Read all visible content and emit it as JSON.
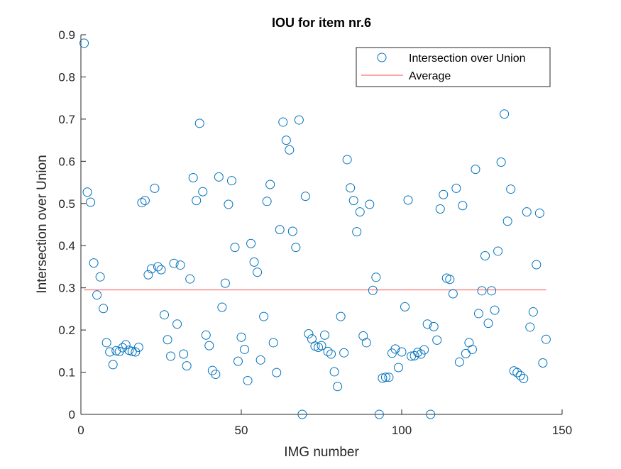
{
  "chart_data": {
    "type": "scatter",
    "title": "IOU for item nr.6",
    "xlabel": "IMG number",
    "ylabel": "Intersection over Union",
    "xlim": [
      0,
      150
    ],
    "ylim": [
      0,
      0.9
    ],
    "xticks": [
      0,
      50,
      100,
      150
    ],
    "xtick_labels": [
      "0",
      "50",
      "100",
      "150"
    ],
    "yticks": [
      0,
      0.1,
      0.2,
      0.3,
      0.4,
      0.5,
      0.6,
      0.7,
      0.8,
      0.9
    ],
    "ytick_labels": [
      "0",
      "0.1",
      "0.2",
      "0.3",
      "0.4",
      "0.5",
      "0.6",
      "0.7",
      "0.8",
      "0.9"
    ],
    "grid": false,
    "legend_position": "top-right",
    "marker_color": "#0072BD",
    "average_color": "#FF4D4D",
    "series": [
      {
        "name": "Intersection over Union",
        "x": [
          1,
          2,
          3,
          4,
          5,
          6,
          7,
          8,
          9,
          10,
          11,
          12,
          13,
          14,
          15,
          16,
          17,
          18,
          19,
          20,
          21,
          22,
          23,
          24,
          25,
          26,
          27,
          28,
          29,
          30,
          31,
          32,
          33,
          34,
          35,
          36,
          37,
          38,
          39,
          40,
          41,
          42,
          43,
          44,
          45,
          46,
          47,
          48,
          49,
          50,
          51,
          52,
          53,
          54,
          55,
          56,
          57,
          58,
          59,
          60,
          61,
          62,
          63,
          64,
          65,
          66,
          67,
          68,
          69,
          70,
          71,
          72,
          73,
          74,
          75,
          76,
          77,
          78,
          79,
          80,
          81,
          82,
          83,
          84,
          85,
          86,
          87,
          88,
          89,
          90,
          91,
          92,
          93,
          94,
          95,
          96,
          97,
          98,
          99,
          100,
          101,
          102,
          103,
          104,
          105,
          106,
          107,
          108,
          109,
          110,
          111,
          112,
          113,
          114,
          115,
          116,
          117,
          118,
          119,
          120,
          121,
          122,
          123,
          124,
          125,
          126,
          127,
          128,
          129,
          130,
          131,
          132,
          133,
          134,
          135,
          136,
          137,
          138,
          139,
          140,
          141,
          142,
          143,
          144,
          145
        ],
        "y": [
          0.88,
          0.527,
          0.503,
          0.359,
          0.283,
          0.326,
          0.251,
          0.17,
          0.148,
          0.118,
          0.151,
          0.149,
          0.158,
          0.165,
          0.152,
          0.149,
          0.148,
          0.159,
          0.502,
          0.507,
          0.331,
          0.345,
          0.536,
          0.35,
          0.343,
          0.236,
          0.177,
          0.138,
          0.358,
          0.214,
          0.354,
          0.143,
          0.115,
          0.321,
          0.561,
          0.507,
          0.69,
          0.528,
          0.188,
          0.163,
          0.104,
          0.095,
          0.563,
          0.254,
          0.311,
          0.498,
          0.554,
          0.396,
          0.126,
          0.183,
          0.154,
          0.08,
          0.405,
          0.361,
          0.337,
          0.129,
          0.232,
          0.505,
          0.545,
          0.17,
          0.099,
          0.438,
          0.693,
          0.65,
          0.627,
          0.434,
          0.396,
          0.698,
          0.0,
          0.517,
          0.191,
          0.179,
          0.162,
          0.159,
          0.163,
          0.188,
          0.149,
          0.143,
          0.101,
          0.066,
          0.232,
          0.146,
          0.604,
          0.537,
          0.507,
          0.433,
          0.48,
          0.186,
          0.17,
          0.498,
          0.294,
          0.325,
          0.0,
          0.086,
          0.088,
          0.088,
          0.145,
          0.155,
          0.111,
          0.148,
          0.255,
          0.508,
          0.138,
          0.139,
          0.147,
          0.143,
          0.153,
          0.214,
          0.0,
          0.208,
          0.176,
          0.487,
          0.521,
          0.323,
          0.32,
          0.286,
          0.536,
          0.124,
          0.495,
          0.144,
          0.17,
          0.154,
          0.581,
          0.239,
          0.293,
          0.376,
          0.216,
          0.293,
          0.247,
          0.387,
          0.598,
          0.712,
          0.458,
          0.534,
          0.103,
          0.099,
          0.092,
          0.085,
          0.48,
          0.207,
          0.243,
          0.355,
          0.477,
          0.122,
          0.178
        ]
      },
      {
        "name": "Average",
        "x": [
          1,
          145
        ],
        "y": [
          0.295,
          0.295
        ]
      }
    ]
  }
}
